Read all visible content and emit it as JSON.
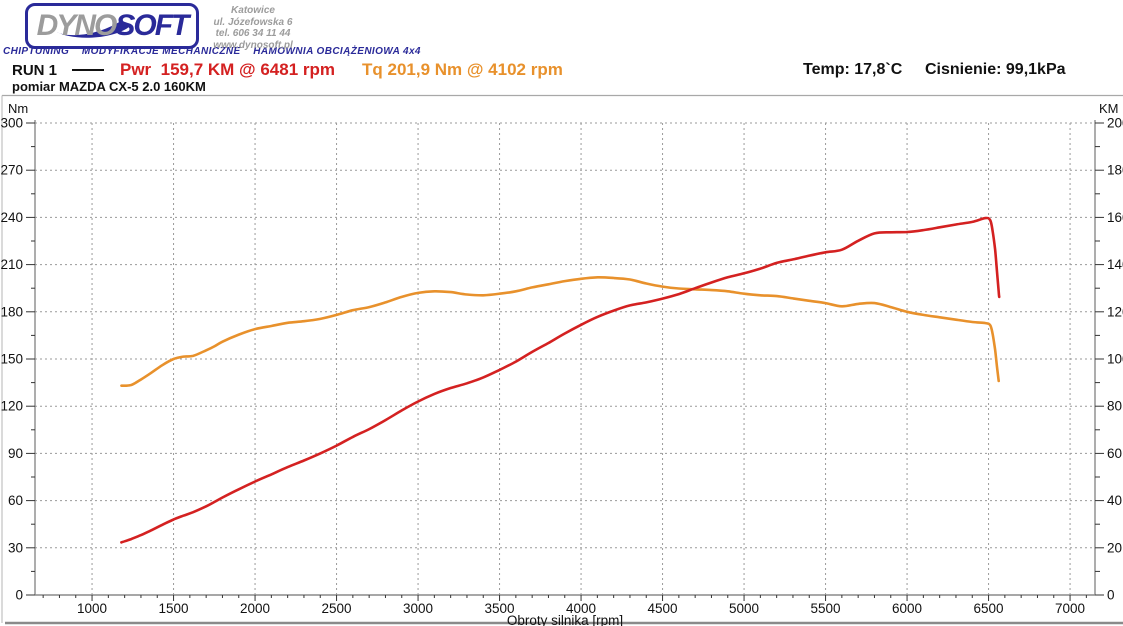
{
  "logo": {
    "brand_gray": "DYNO",
    "brand_blue": "SOFT",
    "tagline": "CHIPTUNING    MODYFIKACJE MECHANICZNE    HAMOWNIA OBCIĄŻENIOWA 4x4",
    "address_lines": [
      "Katowice",
      "ul. Józefowska 6",
      "tel. 606 34 11 44",
      "www.dynosoft.pl"
    ]
  },
  "header": {
    "run_label": "RUN 1",
    "pwr_label": "Pwr  159,7 KM @ 6481 rpm",
    "tq_label": "Tq 201,9 Nm @ 4102 rpm",
    "temp_label": "Temp: 17,8`C",
    "pressure_label": "Cisnienie: 99,1kPa",
    "subtitle": "pomiar MAZDA CX-5 2.0 160KM"
  },
  "colors": {
    "power_red": "#d42121",
    "torque_orange": "#e8912c",
    "logo_navy": "#2a2a99",
    "logo_gray": "#9c9c9c",
    "grid_gray": "#9a9a9a",
    "axis_gray": "#8a8a8a"
  },
  "chart_data": {
    "type": "line",
    "grid": true,
    "x_axis": {
      "label": "Obroty silnika [rpm]",
      "min": 650,
      "max": 7153,
      "ticks": [
        1000,
        1500,
        2000,
        2500,
        3000,
        3500,
        4000,
        4500,
        5000,
        5500,
        6000,
        6500,
        7000
      ],
      "minor_step": 100
    },
    "left_axis": {
      "label": "Nm",
      "min": 0,
      "max": 300,
      "ticks": [
        0,
        30,
        60,
        90,
        120,
        150,
        180,
        210,
        240,
        270,
        300
      ],
      "minor_step": 15
    },
    "right_axis": {
      "label": "KM",
      "min": 0,
      "max": 200,
      "ticks": [
        0,
        20,
        40,
        60,
        80,
        100,
        120,
        140,
        160,
        180,
        200
      ],
      "minor_step": 10
    },
    "series": [
      {
        "name": "Torque",
        "unit": "Nm",
        "axis": "left",
        "color": "#e8912c",
        "peak": "201,9 Nm @ 4102 rpm",
        "points": [
          [
            1180,
            133
          ],
          [
            1240,
            133.5
          ],
          [
            1300,
            137
          ],
          [
            1360,
            141
          ],
          [
            1430,
            146
          ],
          [
            1500,
            150
          ],
          [
            1560,
            151.5
          ],
          [
            1620,
            152
          ],
          [
            1700,
            155.5
          ],
          [
            1750,
            158
          ],
          [
            1800,
            161
          ],
          [
            1900,
            165.5
          ],
          [
            2000,
            169
          ],
          [
            2100,
            171
          ],
          [
            2200,
            173
          ],
          [
            2300,
            174
          ],
          [
            2400,
            175.5
          ],
          [
            2500,
            178
          ],
          [
            2600,
            181
          ],
          [
            2700,
            183
          ],
          [
            2800,
            186
          ],
          [
            2900,
            189.5
          ],
          [
            3000,
            192
          ],
          [
            3100,
            193
          ],
          [
            3200,
            192.5
          ],
          [
            3300,
            191
          ],
          [
            3400,
            190.5
          ],
          [
            3500,
            191.5
          ],
          [
            3600,
            193
          ],
          [
            3700,
            195.5
          ],
          [
            3800,
            197.5
          ],
          [
            3900,
            199.5
          ],
          [
            4000,
            201
          ],
          [
            4102,
            201.9
          ],
          [
            4200,
            201.5
          ],
          [
            4300,
            200.5
          ],
          [
            4400,
            198
          ],
          [
            4500,
            196
          ],
          [
            4600,
            194.8
          ],
          [
            4700,
            194.3
          ],
          [
            4800,
            193.8
          ],
          [
            4900,
            193
          ],
          [
            5000,
            191.5
          ],
          [
            5100,
            190.5
          ],
          [
            5200,
            190
          ],
          [
            5300,
            188.5
          ],
          [
            5400,
            187
          ],
          [
            5500,
            185.5
          ],
          [
            5600,
            183.5
          ],
          [
            5700,
            185
          ],
          [
            5800,
            185.5
          ],
          [
            5900,
            183
          ],
          [
            6000,
            180
          ],
          [
            6100,
            178
          ],
          [
            6200,
            176.5
          ],
          [
            6300,
            175
          ],
          [
            6400,
            173.5
          ],
          [
            6481,
            172.8
          ],
          [
            6510,
            171.5
          ],
          [
            6525,
            166
          ],
          [
            6540,
            156
          ],
          [
            6552,
            145
          ],
          [
            6562,
            136
          ]
        ]
      },
      {
        "name": "Power",
        "unit": "KM",
        "axis": "right",
        "color": "#d42121",
        "peak": "159,7 KM @ 6481 rpm",
        "points": [
          [
            1180,
            22.3
          ],
          [
            1240,
            23.7
          ],
          [
            1300,
            25.4
          ],
          [
            1360,
            27.3
          ],
          [
            1430,
            29.7
          ],
          [
            1500,
            32
          ],
          [
            1560,
            33.6
          ],
          [
            1620,
            35.1
          ],
          [
            1700,
            37.6
          ],
          [
            1750,
            39.4
          ],
          [
            1800,
            41.3
          ],
          [
            1900,
            44.8
          ],
          [
            2000,
            48.1
          ],
          [
            2100,
            51.1
          ],
          [
            2200,
            54.2
          ],
          [
            2300,
            57
          ],
          [
            2400,
            60
          ],
          [
            2500,
            63.3
          ],
          [
            2600,
            67
          ],
          [
            2700,
            70.3
          ],
          [
            2800,
            74.1
          ],
          [
            2900,
            78.2
          ],
          [
            3000,
            82
          ],
          [
            3100,
            85.2
          ],
          [
            3200,
            87.7
          ],
          [
            3300,
            89.7
          ],
          [
            3400,
            92.2
          ],
          [
            3500,
            95.4
          ],
          [
            3600,
            98.9
          ],
          [
            3700,
            103
          ],
          [
            3800,
            106.8
          ],
          [
            3900,
            110.8
          ],
          [
            4000,
            114.5
          ],
          [
            4102,
            117.9
          ],
          [
            4200,
            120.5
          ],
          [
            4300,
            122.7
          ],
          [
            4400,
            124
          ],
          [
            4500,
            125.6
          ],
          [
            4600,
            127.5
          ],
          [
            4700,
            130
          ],
          [
            4800,
            132.4
          ],
          [
            4900,
            134.6
          ],
          [
            5000,
            136.3
          ],
          [
            5100,
            138.3
          ],
          [
            5200,
            140.7
          ],
          [
            5300,
            142.2
          ],
          [
            5400,
            143.8
          ],
          [
            5500,
            145.2
          ],
          [
            5600,
            146.3
          ],
          [
            5700,
            150.1
          ],
          [
            5800,
            153.2
          ],
          [
            5900,
            153.7
          ],
          [
            6000,
            153.8
          ],
          [
            6100,
            154.6
          ],
          [
            6200,
            155.8
          ],
          [
            6300,
            157
          ],
          [
            6400,
            158.1
          ],
          [
            6481,
            159.7
          ],
          [
            6510,
            158.8
          ],
          [
            6525,
            154.3
          ],
          [
            6540,
            146.5
          ],
          [
            6552,
            137
          ],
          [
            6562,
            128.5
          ],
          [
            6565,
            126.3
          ]
        ]
      }
    ]
  }
}
